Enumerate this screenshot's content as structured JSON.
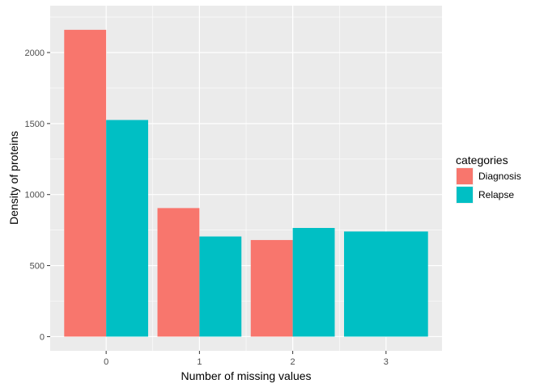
{
  "chart_data": {
    "type": "bar",
    "xlabel": "Number of missing values",
    "ylabel": "Density of proteins",
    "categories": [
      "0",
      "1",
      "2",
      "3"
    ],
    "ylim": [
      -100,
      2330
    ],
    "yticks": [
      0,
      500,
      1000,
      1500,
      2000
    ],
    "grid": true,
    "legend_title": "categories",
    "legend_position": "right",
    "series": [
      {
        "name": "Diagnosis",
        "color": "#F8766D",
        "values": [
          2160,
          905,
          680,
          null
        ]
      },
      {
        "name": "Relapse",
        "color": "#00BFC4",
        "values": [
          1525,
          705,
          765,
          740
        ]
      }
    ]
  }
}
